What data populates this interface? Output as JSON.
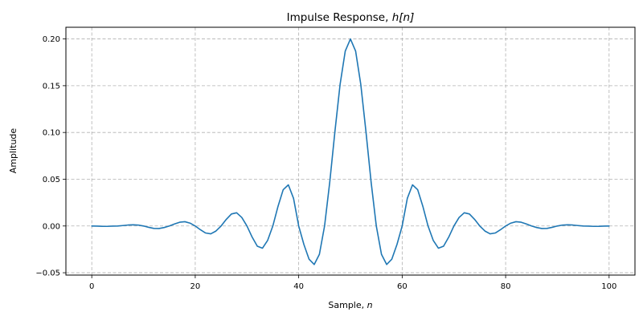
{
  "chart_data": {
    "type": "line",
    "title": "Impulse Response, h[n]",
    "title_parts": {
      "prefix": "Impulse Response, ",
      "math": "h[n]"
    },
    "xlabel": "Sample, n",
    "xlabel_parts": {
      "prefix": "Sample, ",
      "math": "n"
    },
    "ylabel": "Amplitude",
    "xlim": [
      -5,
      105
    ],
    "ylim": [
      -0.0525,
      0.2125
    ],
    "xticks": [
      0,
      20,
      40,
      60,
      80,
      100
    ],
    "xtick_labels": [
      "0",
      "20",
      "40",
      "60",
      "80",
      "100"
    ],
    "yticks": [
      -0.05,
      0.0,
      0.05,
      0.1,
      0.15,
      0.2
    ],
    "ytick_labels": [
      "−0.05",
      "0.00",
      "0.05",
      "0.10",
      "0.15",
      "0.20"
    ],
    "grid": true,
    "grid_style": "dashed",
    "legend": null,
    "series": [
      {
        "name": "h[n]",
        "color": "#1f77b4",
        "description": "Hamming-windowed sinc low-pass FIR, 101 taps, cutoff 0.1 (normalized), centered at n=50",
        "x": [
          0,
          1,
          2,
          3,
          4,
          5,
          6,
          7,
          8,
          9,
          10,
          11,
          12,
          13,
          14,
          15,
          16,
          17,
          18,
          19,
          20,
          21,
          22,
          23,
          24,
          25,
          26,
          27,
          28,
          29,
          30,
          31,
          32,
          33,
          34,
          35,
          36,
          37,
          38,
          39,
          40,
          41,
          42,
          43,
          44,
          45,
          46,
          47,
          48,
          49,
          50,
          51,
          52,
          53,
          54,
          55,
          56,
          57,
          58,
          59,
          60,
          61,
          62,
          63,
          64,
          65,
          66,
          67,
          68,
          69,
          70,
          71,
          72,
          73,
          74,
          75,
          76,
          77,
          78,
          79,
          80,
          81,
          82,
          83,
          84,
          85,
          86,
          87,
          88,
          89,
          90,
          91,
          92,
          93,
          94,
          95,
          96,
          97,
          98,
          99,
          100
        ],
        "values": [
          0.0,
          -0.00015,
          -0.00035,
          -0.00039,
          -0.00015,
          0.0,
          0.00046,
          0.00101,
          0.00128,
          0.00098,
          0.0,
          -0.00142,
          -0.00258,
          -0.00273,
          -0.00163,
          0.0,
          0.00216,
          0.00403,
          0.00458,
          0.00305,
          0.0,
          -0.00404,
          -0.00749,
          -0.00837,
          -0.00543,
          0.0,
          0.00706,
          0.01286,
          0.0141,
          0.00906,
          0.0,
          -0.01189,
          -0.02161,
          -0.02375,
          -0.01531,
          0.0,
          0.02097,
          0.03879,
          0.04399,
          0.02959,
          0.0,
          -0.01971,
          -0.03549,
          -0.04117,
          -0.03029,
          0.0,
          0.04677,
          0.10091,
          0.15143,
          0.18706,
          0.2,
          0.18706,
          0.15143,
          0.10091,
          0.04677,
          0.0,
          -0.03029,
          -0.04117,
          -0.03549,
          -0.01971,
          0.0,
          0.02959,
          0.04399,
          0.03879,
          0.02097,
          0.0,
          -0.01531,
          -0.02375,
          -0.02161,
          -0.01189,
          0.0,
          0.00906,
          0.0141,
          0.01286,
          0.00706,
          0.0,
          -0.00543,
          -0.00837,
          -0.00749,
          -0.00404,
          0.0,
          0.00305,
          0.00458,
          0.00403,
          0.00216,
          0.0,
          -0.00163,
          -0.00273,
          -0.00258,
          -0.00142,
          0.0,
          0.00098,
          0.00128,
          0.00101,
          0.00046,
          0.0,
          -0.00015,
          -0.00039,
          -0.00035,
          -0.00015,
          0.0
        ]
      }
    ]
  },
  "colors": {
    "line": "#1f77b4",
    "grid": "#b0b0b0",
    "axes": "#000000",
    "background": "#ffffff"
  }
}
